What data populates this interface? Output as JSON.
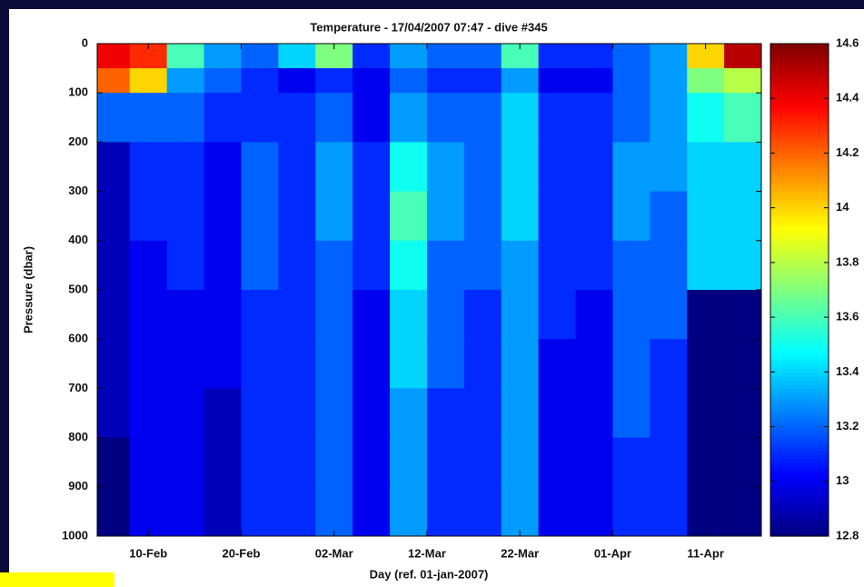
{
  "chart_data": {
    "type": "heatmap",
    "title": "Temperature - 17/04/2007 07:47 - dive #345",
    "xlabel": "Day (ref. 01-jan-2007)",
    "ylabel": "Pressure (dbar)",
    "colormap": "jet",
    "xlim": [
      34.5,
      106
    ],
    "xticks": [
      {
        "value": 40,
        "label": "10-Feb"
      },
      {
        "value": 50,
        "label": "20-Feb"
      },
      {
        "value": 60,
        "label": "02-Mar"
      },
      {
        "value": 70,
        "label": "12-Mar"
      },
      {
        "value": 80,
        "label": "22-Mar"
      },
      {
        "value": 90,
        "label": "01-Apr"
      },
      {
        "value": 100,
        "label": "11-Apr"
      }
    ],
    "ylim": [
      1000,
      0
    ],
    "yticks": [
      0,
      100,
      200,
      300,
      400,
      500,
      600,
      700,
      800,
      900,
      1000
    ],
    "zlim": [
      12.8,
      14.6
    ],
    "zticks": [
      12.8,
      13,
      13.2,
      13.4,
      13.6,
      13.8,
      14,
      14.2,
      14.4,
      14.6
    ],
    "x_edges": [
      34.5,
      38,
      42,
      46,
      50,
      54,
      58,
      62,
      66,
      70,
      74,
      78,
      82,
      86,
      90,
      94,
      98,
      102,
      106
    ],
    "y_edges": [
      0,
      50,
      100,
      200,
      300,
      400,
      500,
      600,
      700,
      800,
      900,
      1000
    ],
    "z": [
      [
        14.4,
        14.3,
        13.6,
        13.3,
        13.2,
        13.4,
        13.7,
        13.1,
        13.3,
        13.2,
        13.2,
        13.6,
        13.1,
        13.1,
        13.2,
        13.3,
        14.0,
        14.5
      ],
      [
        14.2,
        14.0,
        13.3,
        13.2,
        13.1,
        13.0,
        13.1,
        13.0,
        13.2,
        13.1,
        13.1,
        13.3,
        13.0,
        13.0,
        13.2,
        13.3,
        13.7,
        13.8
      ],
      [
        13.2,
        13.2,
        13.2,
        13.1,
        13.1,
        13.1,
        13.2,
        13.0,
        13.3,
        13.2,
        13.2,
        13.4,
        13.1,
        13.1,
        13.2,
        13.3,
        13.5,
        13.6
      ],
      [
        12.9,
        13.1,
        13.1,
        13.0,
        13.2,
        13.1,
        13.3,
        13.1,
        13.5,
        13.3,
        13.2,
        13.4,
        13.1,
        13.1,
        13.3,
        13.3,
        13.4,
        13.4
      ],
      [
        12.9,
        13.1,
        13.1,
        13.0,
        13.2,
        13.1,
        13.3,
        13.1,
        13.6,
        13.3,
        13.2,
        13.4,
        13.1,
        13.1,
        13.3,
        13.2,
        13.4,
        13.4
      ],
      [
        12.9,
        13.0,
        13.1,
        13.0,
        13.2,
        13.1,
        13.2,
        13.1,
        13.5,
        13.2,
        13.2,
        13.3,
        13.1,
        13.1,
        13.2,
        13.2,
        13.4,
        13.4
      ],
      [
        12.9,
        13.0,
        13.0,
        13.0,
        13.1,
        13.1,
        13.2,
        13.0,
        13.4,
        13.2,
        13.1,
        13.3,
        13.1,
        13.0,
        13.2,
        13.2,
        12.8,
        12.8
      ],
      [
        12.9,
        13.0,
        13.0,
        13.0,
        13.1,
        13.1,
        13.2,
        13.0,
        13.4,
        13.2,
        13.1,
        13.3,
        13.0,
        13.0,
        13.2,
        13.1,
        12.8,
        12.8
      ],
      [
        12.9,
        13.0,
        13.0,
        12.9,
        13.1,
        13.1,
        13.2,
        13.0,
        13.3,
        13.1,
        13.1,
        13.3,
        13.0,
        13.0,
        13.2,
        13.1,
        12.8,
        12.8
      ],
      [
        12.8,
        13.0,
        13.0,
        12.9,
        13.1,
        13.1,
        13.2,
        13.0,
        13.3,
        13.1,
        13.1,
        13.3,
        13.0,
        13.0,
        13.1,
        13.1,
        12.8,
        12.8
      ],
      [
        12.8,
        13.0,
        13.0,
        12.9,
        13.1,
        13.1,
        13.2,
        13.0,
        13.3,
        13.1,
        13.1,
        13.3,
        13.0,
        13.0,
        13.1,
        13.1,
        12.8,
        12.8
      ]
    ]
  }
}
